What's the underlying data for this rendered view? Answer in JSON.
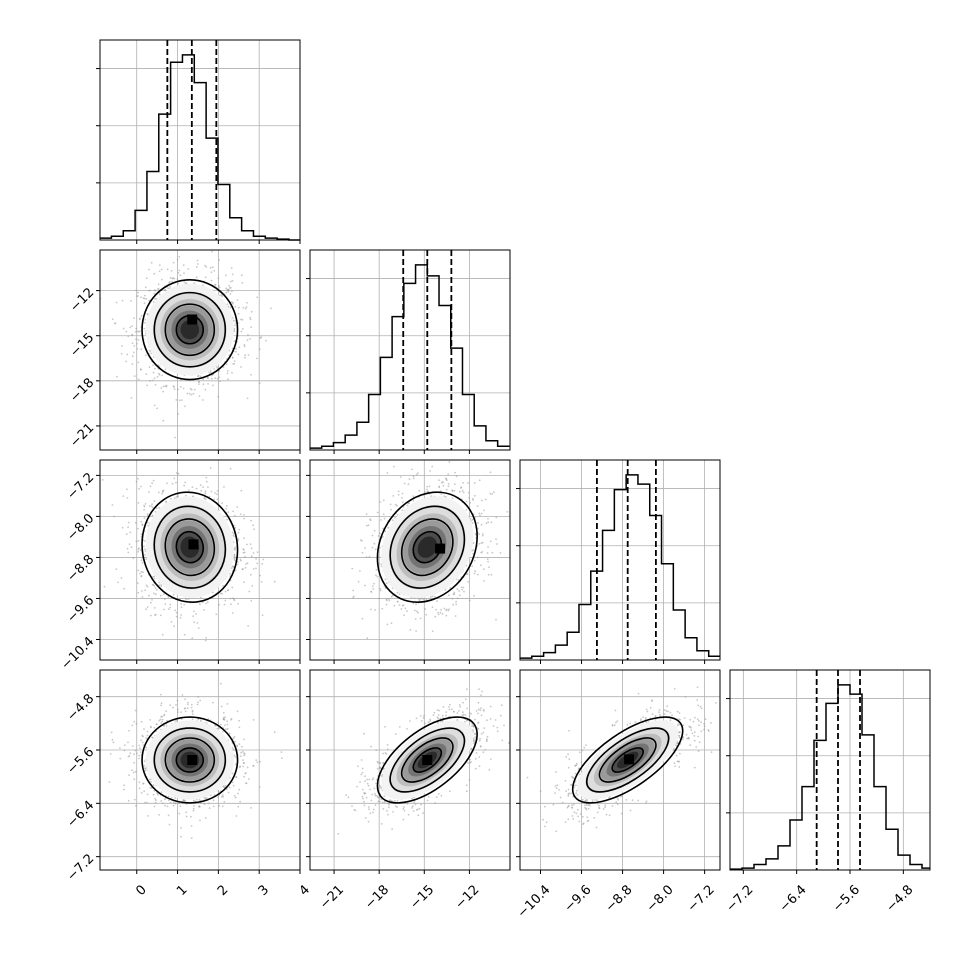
{
  "chart_data": {
    "type": "corner",
    "parameters": [
      {
        "range": [
          -0.9,
          4.0
        ],
        "x_ticks": [
          0,
          1,
          2,
          3,
          4
        ],
        "x_tick_labels": [
          "0",
          "1",
          "2",
          "3",
          "4"
        ],
        "y_ticks": [
          -12,
          -15,
          -18,
          -21
        ],
        "y_tick_labels": [
          "−12",
          "−15",
          "−18",
          "−21"
        ],
        "quantiles": [
          0.75,
          1.35,
          1.95
        ],
        "hist_x": [
          -0.9,
          -0.62,
          -0.33,
          -0.04,
          0.25,
          0.54,
          0.83,
          1.12,
          1.41,
          1.7,
          1.99,
          2.28,
          2.57,
          2.86,
          3.15,
          3.44,
          3.73,
          4.0
        ],
        "hist_counts": [
          1,
          2,
          5,
          16,
          37,
          68,
          96,
          100,
          85,
          55,
          30,
          12,
          5,
          2,
          1,
          0.5,
          0
        ]
      },
      {
        "range": [
          -22.6,
          -9.3
        ],
        "x_ticks": [
          -21,
          -18,
          -15,
          -12
        ],
        "x_tick_labels": [
          "−21",
          "−18",
          "−15",
          "−12"
        ],
        "y_ticks": [
          -7.2,
          -8.0,
          -8.8,
          -9.6,
          -10.4
        ],
        "y_tick_labels": [
          "−7.2",
          "−8.0",
          "−8.8",
          "−9.6",
          "−10.4"
        ],
        "quantiles": [
          -16.4,
          -14.8,
          -13.2
        ],
        "hist_x": [
          -22.6,
          -21.82,
          -21.04,
          -20.26,
          -19.48,
          -18.7,
          -17.92,
          -17.14,
          -16.36,
          -15.58,
          -14.8,
          -14.02,
          -13.24,
          -12.46,
          -11.68,
          -10.9,
          -10.12,
          -9.34
        ],
        "hist_counts": [
          1,
          2,
          4,
          8,
          15,
          30,
          50,
          72,
          90,
          100,
          94,
          78,
          55,
          30,
          13,
          5,
          2
        ]
      },
      {
        "range": [
          -10.8,
          -6.9
        ],
        "x_ticks": [
          -10.4,
          -9.6,
          -8.8,
          -8.0,
          -7.2
        ],
        "x_tick_labels": [
          "−10.4",
          "−9.6",
          "−8.8",
          "−8.0",
          "−7.2"
        ],
        "y_ticks": [
          -4.8,
          -5.6,
          -6.4,
          -7.2
        ],
        "y_tick_labels": [
          "−4.8",
          "−5.6",
          "−6.4",
          "−7.2"
        ],
        "quantiles": [
          -9.3,
          -8.7,
          -8.15
        ],
        "hist_x": [
          -10.8,
          -10.57,
          -10.34,
          -10.11,
          -9.88,
          -9.65,
          -9.42,
          -9.19,
          -8.96,
          -8.73,
          -8.5,
          -8.27,
          -8.04,
          -7.81,
          -7.58,
          -7.35,
          -7.12,
          -6.89
        ],
        "hist_counts": [
          1,
          2,
          4,
          8,
          15,
          30,
          48,
          70,
          92,
          100,
          95,
          78,
          52,
          27,
          12,
          5,
          2
        ]
      },
      {
        "range": [
          -7.4,
          -4.4
        ],
        "x_ticks": [
          -7.2,
          -6.4,
          -5.6,
          -4.8
        ],
        "x_tick_labels": [
          "−7.2",
          "−6.4",
          "−5.6",
          "−4.8"
        ],
        "y_ticks": [],
        "y_tick_labels": [],
        "quantiles": [
          -6.1,
          -5.78,
          -5.45
        ],
        "hist_x": [
          -7.4,
          -7.22,
          -7.04,
          -6.86,
          -6.68,
          -6.5,
          -6.32,
          -6.14,
          -5.96,
          -5.78,
          -5.6,
          -5.42,
          -5.24,
          -5.06,
          -4.88,
          -4.7,
          -4.52,
          -4.4
        ],
        "hist_counts": [
          0.5,
          1,
          3,
          6,
          13,
          27,
          45,
          70,
          90,
          100,
          95,
          73,
          45,
          22,
          8,
          3,
          1
        ]
      }
    ],
    "pairs": [
      {
        "row": 1,
        "col": 0,
        "mean": [
          1.3,
          -14.6
        ],
        "sd": [
          0.6,
          1.7
        ],
        "rho": 0.0,
        "peak_offset": [
          0.1,
          0.4
        ]
      },
      {
        "row": 2,
        "col": 0,
        "mean": [
          1.3,
          -8.6
        ],
        "sd": [
          0.6,
          0.55
        ],
        "rho": -0.05,
        "peak_offset": [
          0.15,
          0.1
        ]
      },
      {
        "row": 2,
        "col": 1,
        "mean": [
          -14.8,
          -8.6
        ],
        "sd": [
          1.7,
          0.55
        ],
        "rho": 0.2,
        "peak_offset": [
          0.5,
          -0.05
        ]
      },
      {
        "row": 3,
        "col": 0,
        "mean": [
          1.3,
          -5.75
        ],
        "sd": [
          0.6,
          0.33
        ],
        "rho": 0.0,
        "peak_offset": [
          0.1,
          0.0
        ]
      },
      {
        "row": 3,
        "col": 1,
        "mean": [
          -14.8,
          -5.75
        ],
        "sd": [
          1.7,
          0.33
        ],
        "rho": 0.6,
        "peak_offset": [
          0.0,
          0.0
        ]
      },
      {
        "row": 3,
        "col": 2,
        "mean": [
          -8.7,
          -5.75
        ],
        "sd": [
          0.55,
          0.33
        ],
        "rho": 0.68,
        "peak_offset": [
          0.05,
          0.03
        ]
      }
    ],
    "contour_levels_sigma": [
      0.5,
      1.0,
      1.5,
      2.0
    ],
    "grid": true,
    "colors": {
      "line": "#000000",
      "grid": "#b0b0b0",
      "points": "#9a9a9a"
    }
  }
}
